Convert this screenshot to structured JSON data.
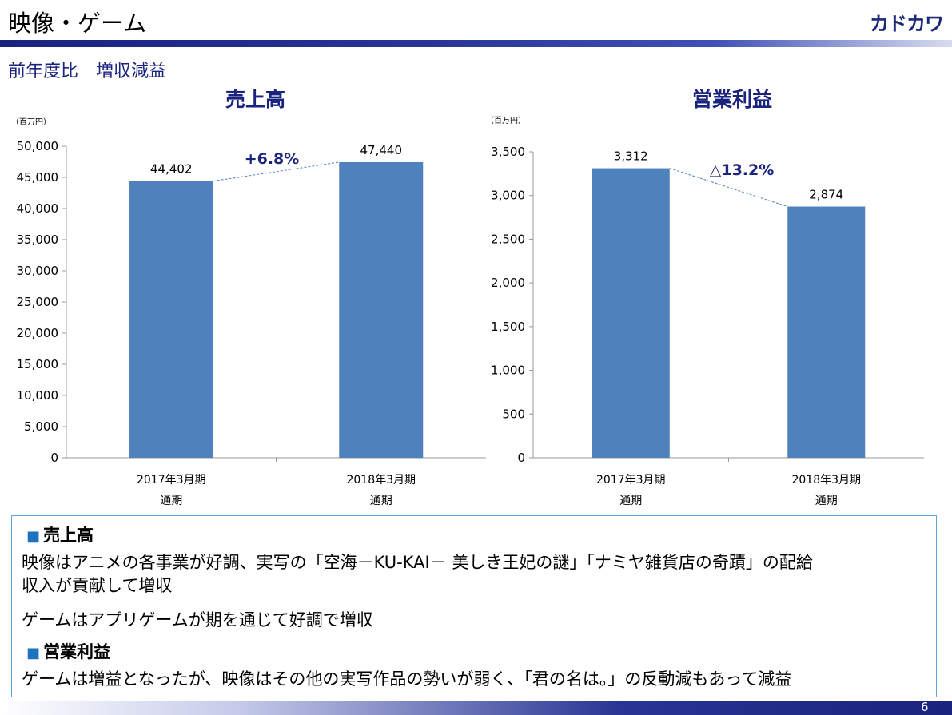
{
  "page": {
    "title": "映像・ゲーム",
    "logo": "カドカワ",
    "subtitle": "前年度比　増収減益",
    "page_number": "6"
  },
  "colors": {
    "bar": "#4f81bd",
    "accent": "#1a237e",
    "box_border": "#5fa8d3"
  },
  "chart_data": [
    {
      "type": "bar",
      "title": "売上高",
      "unit_label": "（百万円）",
      "categories": [
        [
          "2017年3月期",
          "通期"
        ],
        [
          "2018年3月期",
          "通期"
        ]
      ],
      "values": [
        44402,
        47440
      ],
      "value_labels": [
        "44,402",
        "47,440"
      ],
      "ylim": [
        0,
        50000
      ],
      "yticks": [
        "0",
        "5,000",
        "10,000",
        "15,000",
        "20,000",
        "25,000",
        "30,000",
        "35,000",
        "40,000",
        "45,000",
        "50,000"
      ],
      "ytick_values": [
        0,
        5000,
        10000,
        15000,
        20000,
        25000,
        30000,
        35000,
        40000,
        45000,
        50000
      ],
      "change_label": "+6.8%",
      "grid": false
    },
    {
      "type": "bar",
      "title": "営業利益",
      "unit_label": "（百万円）",
      "categories": [
        [
          "2017年3月期",
          "通期"
        ],
        [
          "2018年3月期",
          "通期"
        ]
      ],
      "values": [
        3312,
        2874
      ],
      "value_labels": [
        "3,312",
        "2,874"
      ],
      "ylim": [
        0,
        3500
      ],
      "yticks": [
        "0",
        "500",
        "1,000",
        "1,500",
        "2,000",
        "2,500",
        "3,000",
        "3,500"
      ],
      "ytick_values": [
        0,
        500,
        1000,
        1500,
        2000,
        2500,
        3000,
        3500
      ],
      "change_label": "△13.2%",
      "grid": false
    }
  ],
  "notes": {
    "sales_heading": "売上高",
    "sales_line1": "映像はアニメの各事業が好調、実写の「空海－KU-KAI－ 美しき王妃の謎」「ナミヤ雑貨店の奇蹟」の配給",
    "sales_line2": "収入が貢献して増収",
    "sales_line3": "ゲームはアプリゲームが期を通じて好調で増収",
    "profit_heading": "営業利益",
    "profit_line1": "ゲームは増益となったが、映像はその他の実写作品の勢いが弱く、「君の名は。」の反動減もあって減益"
  }
}
